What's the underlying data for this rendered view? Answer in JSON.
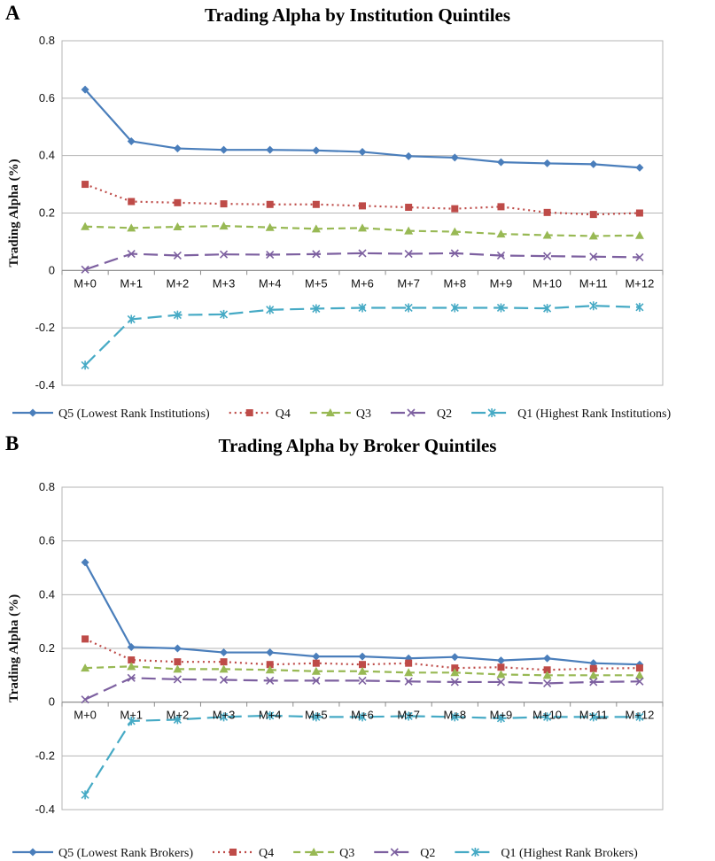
{
  "panels": [
    {
      "letter": "A",
      "chart_data": {
        "type": "line",
        "title": "Trading Alpha by Institution Quintiles",
        "xlabel": "",
        "ylabel": "Trading Alpha (%)",
        "ylim": [
          -0.4,
          0.8
        ],
        "yticks": [
          -0.4,
          -0.2,
          0,
          0.2,
          0.4,
          0.6,
          0.8
        ],
        "ytick_labels": [
          "-0.4",
          "-0.2",
          "0",
          "0.2",
          "0.4",
          "0.6",
          "0.8"
        ],
        "grid": true,
        "legend_position": "bottom",
        "categories": [
          "M+0",
          "M+1",
          "M+2",
          "M+3",
          "M+4",
          "M+5",
          "M+6",
          "M+7",
          "M+8",
          "M+9",
          "M+10",
          "M+11",
          "M+12"
        ],
        "series": [
          {
            "name": "Q5 (Lowest Rank Institutions)",
            "color": "#4a7ebb",
            "marker": "diamond",
            "dash": "solid",
            "values": [
              0.63,
              0.45,
              0.425,
              0.42,
              0.42,
              0.418,
              0.413,
              0.398,
              0.393,
              0.377,
              0.373,
              0.37,
              0.358
            ]
          },
          {
            "name": "Q4",
            "color": "#be4b48",
            "marker": "square",
            "dash": "dot",
            "values": [
              0.3,
              0.24,
              0.236,
              0.232,
              0.23,
              0.23,
              0.225,
              0.22,
              0.215,
              0.222,
              0.202,
              0.195,
              0.2
            ]
          },
          {
            "name": "Q3",
            "color": "#98b954",
            "marker": "triangle",
            "dash": "dash",
            "values": [
              0.153,
              0.148,
              0.152,
              0.155,
              0.15,
              0.145,
              0.148,
              0.138,
              0.135,
              0.127,
              0.123,
              0.12,
              0.122
            ]
          },
          {
            "name": "Q2",
            "color": "#7d60a0",
            "marker": "x",
            "dash": "longdash",
            "values": [
              0.003,
              0.058,
              0.052,
              0.056,
              0.055,
              0.057,
              0.06,
              0.058,
              0.06,
              0.052,
              0.05,
              0.048,
              0.046
            ]
          },
          {
            "name": "Q1 (Highest Rank Institutions)",
            "color": "#46aac5",
            "marker": "star",
            "dash": "longdash",
            "values": [
              -0.33,
              -0.17,
              -0.155,
              -0.153,
              -0.137,
              -0.133,
              -0.13,
              -0.13,
              -0.13,
              -0.13,
              -0.132,
              -0.123,
              -0.128
            ]
          }
        ]
      }
    },
    {
      "letter": "B",
      "chart_data": {
        "type": "line",
        "title": "Trading Alpha by Broker Quintiles",
        "xlabel": "",
        "ylabel": "Trading Alpha (%)",
        "ylim": [
          -0.4,
          0.8
        ],
        "yticks": [
          -0.4,
          -0.2,
          0,
          0.2,
          0.4,
          0.6,
          0.8
        ],
        "ytick_labels": [
          "-0.4",
          "-0.2",
          "0",
          "0.2",
          "0.4",
          "0.6",
          "0.8"
        ],
        "grid": true,
        "legend_position": "bottom",
        "categories": [
          "M+0",
          "M+1",
          "M+2",
          "M+3",
          "M+4",
          "M+5",
          "M+6",
          "M+7",
          "M+8",
          "M+9",
          "M+10",
          "M+11",
          "M+12"
        ],
        "series": [
          {
            "name": "Q5 (Lowest Rank Brokers)",
            "color": "#4a7ebb",
            "marker": "diamond",
            "dash": "solid",
            "values": [
              0.52,
              0.205,
              0.2,
              0.185,
              0.185,
              0.17,
              0.17,
              0.163,
              0.168,
              0.155,
              0.163,
              0.145,
              0.14
            ]
          },
          {
            "name": "Q4",
            "color": "#be4b48",
            "marker": "square",
            "dash": "dot",
            "values": [
              0.235,
              0.157,
              0.15,
              0.15,
              0.14,
              0.145,
              0.14,
              0.145,
              0.127,
              0.13,
              0.12,
              0.125,
              0.127
            ]
          },
          {
            "name": "Q3",
            "color": "#98b954",
            "marker": "triangle",
            "dash": "dash",
            "values": [
              0.127,
              0.133,
              0.123,
              0.123,
              0.12,
              0.115,
              0.115,
              0.11,
              0.11,
              0.103,
              0.1,
              0.1,
              0.1
            ]
          },
          {
            "name": "Q2",
            "color": "#7d60a0",
            "marker": "x",
            "dash": "longdash",
            "values": [
              0.01,
              0.09,
              0.085,
              0.083,
              0.08,
              0.08,
              0.08,
              0.077,
              0.075,
              0.075,
              0.07,
              0.075,
              0.077
            ]
          },
          {
            "name": "Q1 (Highest Rank Brokers)",
            "color": "#46aac5",
            "marker": "star",
            "dash": "longdash",
            "values": [
              -0.345,
              -0.07,
              -0.065,
              -0.055,
              -0.05,
              -0.055,
              -0.055,
              -0.052,
              -0.055,
              -0.06,
              -0.055,
              -0.055,
              -0.055
            ]
          }
        ]
      }
    }
  ]
}
